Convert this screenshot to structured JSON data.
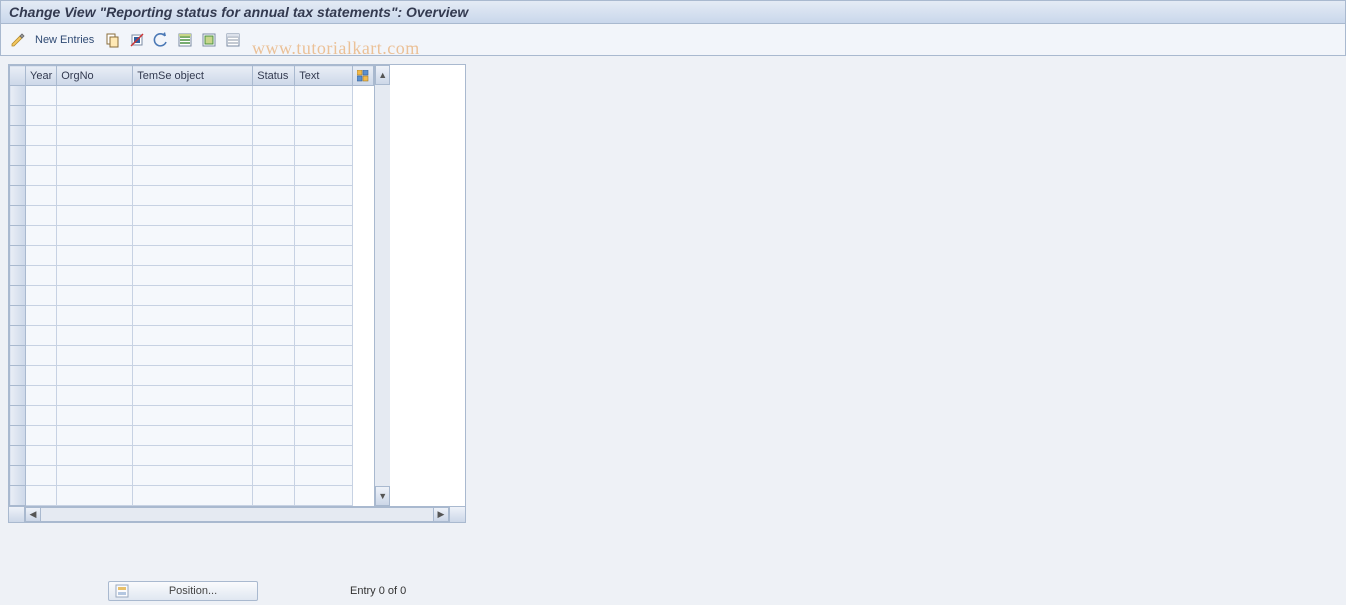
{
  "title": "Change View \"Reporting status for annual tax statements\": Overview",
  "toolbar": {
    "new_entries_label": "New Entries"
  },
  "columns": [
    "Year",
    "OrgNo",
    "TemSe object",
    "Status",
    "Text"
  ],
  "row_count": 21,
  "footer": {
    "position_label": "Position...",
    "entry_label": "Entry 0 of 0"
  },
  "watermark": "www.tutorialkart.com",
  "colors": {
    "title_bg_top": "#e4ebf5",
    "title_bg_bottom": "#c9d7eb",
    "border": "#a9b9cf",
    "body_bg": "#eef1f6",
    "cell_bg": "#f5f8fc",
    "cell_alt_bg": "#e9eff7",
    "header_bg_top": "#e9eef6",
    "header_bg_bottom": "#ccd7e8",
    "text": "#333a50",
    "link": "#304b74",
    "watermark": "rgba(230,150,70,0.55)"
  }
}
